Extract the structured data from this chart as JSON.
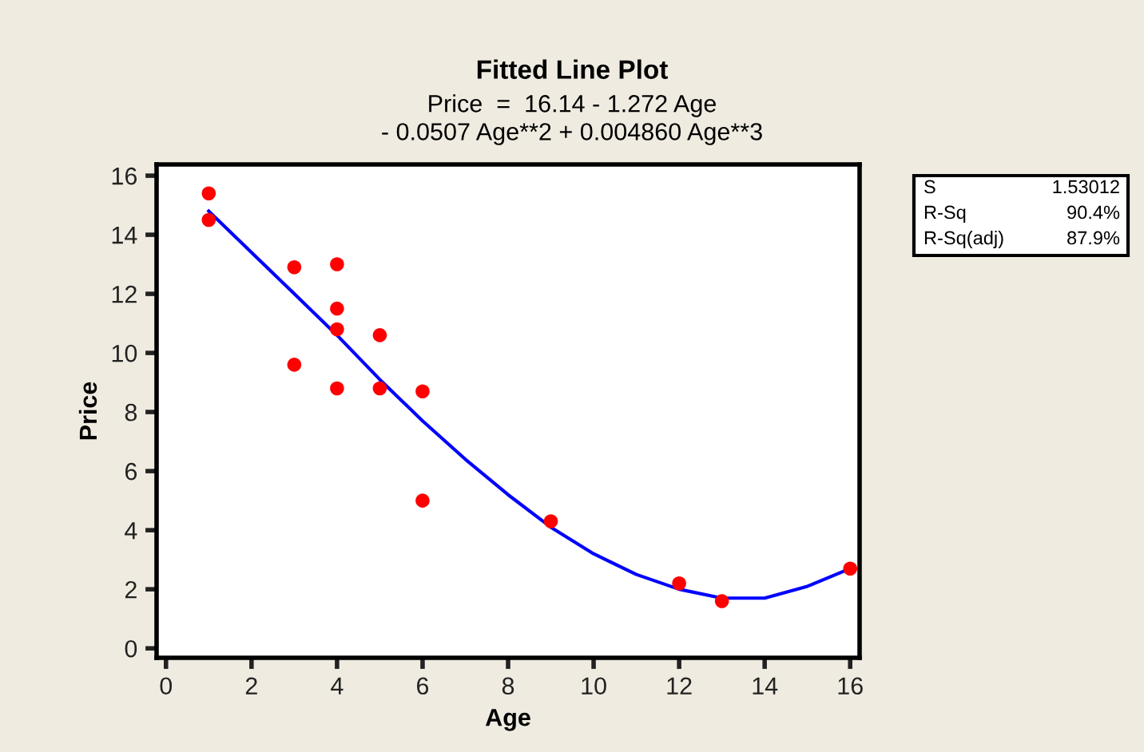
{
  "chart_data": {
    "type": "scatter",
    "title": "Fitted Line Plot",
    "subtitle": "Price  =  16.14 - 1.272 Age\n- 0.0507 Age**2 + 0.004860 Age**3",
    "xlabel": "Age",
    "ylabel": "Price",
    "series": [
      {
        "color": "#ff0000",
        "marker": "circle",
        "x": [
          1,
          1,
          3,
          3,
          4,
          4,
          4,
          4,
          5,
          5,
          6,
          6,
          9,
          12,
          13,
          16
        ],
        "values": [
          15.4,
          14.5,
          12.9,
          9.6,
          13.0,
          11.5,
          10.8,
          8.8,
          10.6,
          8.8,
          8.7,
          5.0,
          4.3,
          2.2,
          1.6,
          2.7
        ]
      },
      {
        "type": "line",
        "color": "#0000ff",
        "line_style": "solid",
        "x": [
          1,
          2,
          3,
          4,
          5,
          6,
          7,
          8,
          9,
          10,
          11,
          12,
          13,
          14,
          15,
          16
        ],
        "values": [
          14.8,
          13.4,
          12.0,
          10.6,
          9.1,
          7.7,
          6.4,
          5.2,
          4.1,
          3.2,
          2.5,
          2.0,
          1.7,
          1.7,
          2.1,
          2.7
        ]
      }
    ],
    "xlim": [
      -0.22,
      16.22
    ],
    "ylim": [
      -0.32,
      16.38
    ],
    "xticks": [
      0,
      2,
      4,
      6,
      8,
      10,
      12,
      14,
      16
    ],
    "yticks": [
      0,
      2,
      4,
      6,
      8,
      10,
      12,
      14,
      16
    ],
    "grid": false,
    "legend": false,
    "annotations": [
      "S",
      "1.53012",
      "R-Sq",
      "90.4%",
      "R-Sq(adj)",
      "87.9%"
    ]
  }
}
